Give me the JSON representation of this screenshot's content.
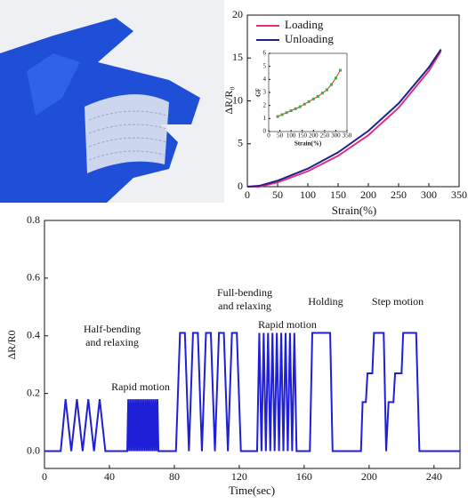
{
  "chart_data": [
    {
      "type": "line",
      "xlabel": "Strain(%)",
      "ylabel": "ΔR/R₀",
      "x": [
        0,
        20,
        50,
        100,
        150,
        200,
        250,
        300,
        320
      ],
      "series": [
        {
          "name": "Loading",
          "color": "#e0307a",
          "values": [
            0,
            0,
            0.5,
            1.8,
            3.6,
            6.0,
            9.2,
            13.5,
            15.8
          ]
        },
        {
          "name": "Unloading",
          "color": "#20208f",
          "values": [
            0,
            0.1,
            0.7,
            2.1,
            4.0,
            6.5,
            9.7,
            13.9,
            16.0
          ]
        }
      ],
      "xlim": [
        0,
        350
      ],
      "xticks": [
        0,
        50,
        100,
        150,
        200,
        250,
        300,
        350
      ],
      "ylim": [
        0,
        20
      ],
      "yticks": [
        0,
        5,
        10,
        15,
        20
      ],
      "legend": "upper-left"
    },
    {
      "type": "line",
      "xlabel": "Strain(%)",
      "ylabel": "GF",
      "marker": true,
      "line_color": "#e03030",
      "x": [
        40,
        60,
        80,
        100,
        120,
        140,
        160,
        180,
        200,
        220,
        240,
        260,
        280,
        300,
        320
      ],
      "series": [
        {
          "color": "#3caa3c",
          "values": [
            1.15,
            1.3,
            1.45,
            1.6,
            1.75,
            1.9,
            2.1,
            2.3,
            2.5,
            2.7,
            2.95,
            3.2,
            3.6,
            4.1,
            4.7
          ]
        }
      ],
      "xlim": [
        0,
        350
      ],
      "xticks": [
        0,
        50,
        100,
        150,
        200,
        250,
        300,
        350
      ],
      "ylim": [
        0,
        6
      ],
      "yticks": [
        0,
        1,
        2,
        3,
        4,
        5,
        6
      ]
    },
    {
      "type": "line",
      "xlabel": "Time(sec)",
      "ylabel": "ΔR/R0",
      "annotations": [
        "Half-bending",
        "and relaxing",
        "Rapid motion",
        "Full-bending",
        "and relaxing",
        "Rapid motion",
        "Holding",
        "Step motion"
      ],
      "x": [
        0,
        10,
        13,
        16.5,
        20,
        23.5,
        27,
        30.5,
        34,
        37.5,
        51,
        51.6,
        52.2,
        52.8,
        53.4,
        54,
        54.6,
        55.2,
        55.8,
        56.4,
        57,
        57.6,
        58.2,
        58.8,
        59.4,
        60,
        60.6,
        61.2,
        61.8,
        62.4,
        63,
        63.6,
        64.2,
        64.8,
        65.4,
        66,
        66.6,
        67.2,
        67.8,
        68.4,
        69,
        69.6,
        70.2,
        81,
        83.5,
        86.5,
        89,
        91.5,
        94.5,
        97,
        99.5,
        102.5,
        105,
        107.5,
        110.5,
        113,
        115.5,
        118.5,
        121,
        131,
        132.35,
        133.7,
        135.05,
        136.4,
        137.75,
        139.1,
        140.45,
        141.8,
        143.15,
        144.5,
        145.85,
        147.2,
        148.55,
        149.9,
        151.25,
        152.6,
        153.95,
        155.3,
        163.5,
        165,
        176,
        177.5,
        195,
        196,
        198,
        199,
        202,
        203,
        209,
        210.5,
        212,
        215,
        216,
        220,
        221,
        229,
        231,
        256
      ],
      "series": [
        {
          "color": "#1f1fd8",
          "values": [
            0,
            0,
            0.18,
            0,
            0.18,
            0,
            0.18,
            0,
            0.18,
            0,
            0,
            0.18,
            0,
            0.18,
            0,
            0.18,
            0,
            0.18,
            0,
            0.18,
            0,
            0.18,
            0,
            0.18,
            0,
            0.18,
            0,
            0.18,
            0,
            0.18,
            0,
            0.18,
            0,
            0.18,
            0,
            0.18,
            0,
            0.18,
            0,
            0.18,
            0,
            0.18,
            0,
            0,
            0.41,
            0.41,
            0,
            0.41,
            0.41,
            0,
            0.41,
            0.41,
            0,
            0.41,
            0.41,
            0,
            0.41,
            0.41,
            0,
            0,
            0.41,
            0,
            0.41,
            0,
            0.41,
            0,
            0.41,
            0,
            0.41,
            0,
            0.41,
            0,
            0.41,
            0,
            0.41,
            0,
            0.41,
            0,
            0,
            0.41,
            0.41,
            0,
            0,
            0.17,
            0.17,
            0.27,
            0.27,
            0.41,
            0.41,
            0,
            0.17,
            0.17,
            0.27,
            0.27,
            0.41,
            0.41,
            0,
            0
          ]
        }
      ],
      "xlim": [
        0,
        256
      ],
      "xticks": [
        0,
        40,
        80,
        120,
        160,
        200,
        240
      ],
      "ylim": [
        -0.06,
        0.8
      ],
      "yticks": [
        {
          "value": 0,
          "label": "0.0"
        },
        0.2,
        0.4,
        0.6,
        0.8
      ]
    }
  ]
}
